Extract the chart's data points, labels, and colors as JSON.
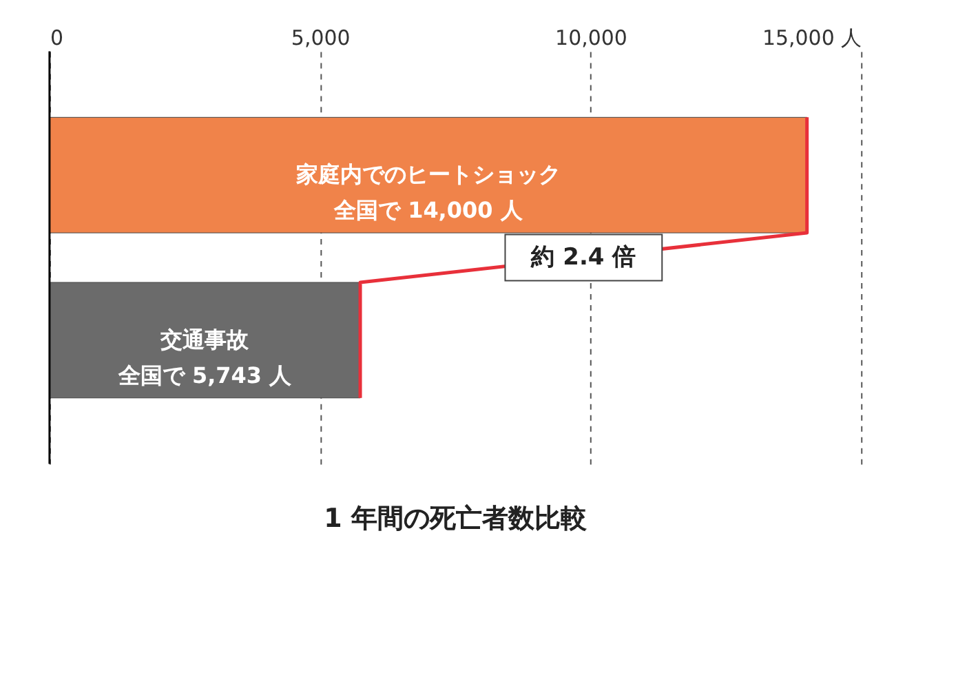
{
  "chart_data": {
    "type": "bar",
    "orientation": "horizontal",
    "title": "1 年間の死亡者数比較",
    "categories": [
      "家庭内でのヒートショック",
      "交通事故"
    ],
    "values": [
      14000,
      5743
    ],
    "colors": [
      "#f0834a",
      "#6b6b6b"
    ],
    "value_labels": [
      "全国で 14,000 人",
      "全国で 5,743 人"
    ],
    "annotations": [
      "約 2.4 倍"
    ],
    "xlim": [
      0,
      15000
    ],
    "xticks": [
      0,
      {
        "value": 5000,
        "label": "5,000"
      },
      {
        "value": 10000,
        "label": "10,000"
      },
      {
        "value": 15000,
        "label": "15,000 人"
      }
    ],
    "grid": "x",
    "line_style": "dashed"
  }
}
